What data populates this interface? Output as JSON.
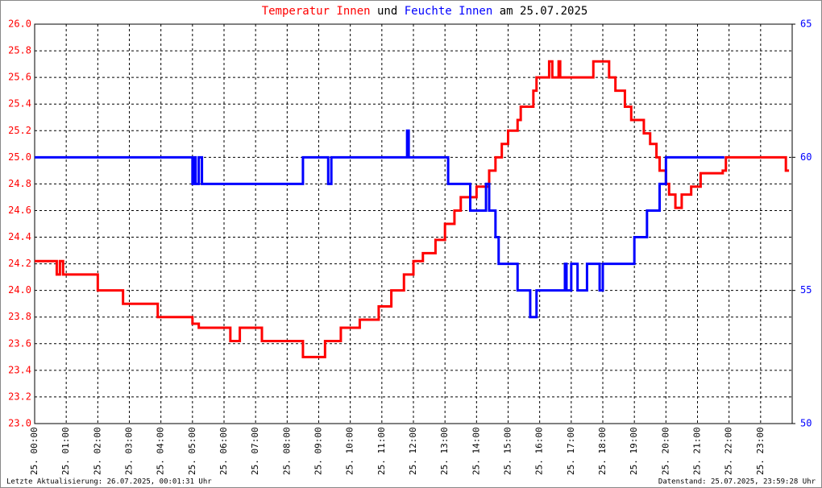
{
  "chart_data": {
    "type": "line",
    "title_connector": "und",
    "title_suffix": "am 25.07.2025",
    "footer_left": "Letzte Aktualisierung: 26.07.2025, 00:01:31 Uhr",
    "footer_right": "Datenstand: 25.07.2025, 23:59:28 Uhr",
    "step": true,
    "grid": true,
    "xlim": [
      0,
      24
    ],
    "xticks": [
      {
        "value": 0,
        "label": "25. 00:00"
      },
      {
        "value": 1,
        "label": "25. 01:00"
      },
      {
        "value": 2,
        "label": "25. 02:00"
      },
      {
        "value": 3,
        "label": "25. 03:00"
      },
      {
        "value": 4,
        "label": "25. 04:00"
      },
      {
        "value": 5,
        "label": "25. 05:00"
      },
      {
        "value": 6,
        "label": "25. 06:00"
      },
      {
        "value": 7,
        "label": "25. 07:00"
      },
      {
        "value": 8,
        "label": "25. 08:00"
      },
      {
        "value": 9,
        "label": "25. 09:00"
      },
      {
        "value": 10,
        "label": "25. 10:00"
      },
      {
        "value": 11,
        "label": "25. 11:00"
      },
      {
        "value": 12,
        "label": "25. 12:00"
      },
      {
        "value": 13,
        "label": "25. 13:00"
      },
      {
        "value": 14,
        "label": "25. 14:00"
      },
      {
        "value": 15,
        "label": "25. 15:00"
      },
      {
        "value": 16,
        "label": "25. 16:00"
      },
      {
        "value": 17,
        "label": "25. 17:00"
      },
      {
        "value": 18,
        "label": "25. 18:00"
      },
      {
        "value": 19,
        "label": "25. 19:00"
      },
      {
        "value": 20,
        "label": "25. 20:00"
      },
      {
        "value": 21,
        "label": "25. 21:00"
      },
      {
        "value": 22,
        "label": "25. 22:00"
      },
      {
        "value": 23,
        "label": "25. 23:00"
      }
    ],
    "ylim": [
      23,
      26
    ],
    "yticks": [
      {
        "value": 23,
        "label": "23.0"
      },
      23.2,
      23.4,
      23.6,
      23.8,
      {
        "value": 24,
        "label": "24.0"
      },
      24.2,
      24.4,
      24.6,
      24.8,
      {
        "value": 25,
        "label": "25.0"
      },
      25.2,
      25.4,
      25.6,
      25.8,
      {
        "value": 26,
        "label": "26.0"
      }
    ],
    "y2lim": [
      50,
      65
    ],
    "y2ticks": [
      50,
      55,
      60,
      65
    ],
    "series": [
      {
        "name": "Temperatur Innen",
        "color": "#ff0000",
        "x": [
          0,
          0.7,
          0.8,
          0.9,
          1.0,
          2.0,
          2.8,
          3.0,
          3.9,
          4.2,
          5.0,
          5.2,
          6.2,
          6.5,
          7.2,
          8.5,
          9.0,
          9.2,
          9.7,
          10.3,
          10.9,
          11.3,
          11.7,
          12.0,
          12.3,
          12.7,
          13.0,
          13.3,
          13.5,
          14.0,
          14.4,
          14.6,
          14.8,
          15.0,
          15.3,
          15.4,
          15.8,
          15.9,
          16.3,
          16.4,
          16.6,
          16.65,
          17.7,
          18.2,
          18.4,
          18.7,
          18.9,
          19.3,
          19.5,
          19.7,
          19.8,
          20.0,
          20.1,
          20.3,
          20.5,
          20.8,
          21.1,
          21.8,
          21.9,
          23.8,
          23.9
        ],
        "values": [
          24.22,
          24.12,
          24.22,
          24.12,
          24.12,
          24.0,
          23.9,
          23.9,
          23.8,
          23.8,
          23.75,
          23.72,
          23.62,
          23.72,
          23.62,
          23.5,
          23.5,
          23.62,
          23.72,
          23.78,
          23.88,
          24.0,
          24.12,
          24.22,
          24.28,
          24.38,
          24.5,
          24.6,
          24.7,
          24.78,
          24.9,
          25.0,
          25.1,
          25.2,
          25.28,
          25.38,
          25.5,
          25.6,
          25.72,
          25.6,
          25.72,
          25.6,
          25.72,
          25.6,
          25.5,
          25.38,
          25.28,
          25.18,
          25.1,
          25.0,
          24.9,
          24.8,
          24.72,
          24.62,
          24.72,
          24.78,
          24.88,
          24.9,
          25.0,
          24.9,
          24.9
        ]
      },
      {
        "name": "Feuchte Innen",
        "color": "#0000ff",
        "axis": "y2",
        "x": [
          0,
          5.0,
          5.05,
          5.1,
          5.2,
          5.3,
          8.5,
          9.3,
          9.4,
          11.8,
          11.85,
          13.1,
          13.8,
          14.3,
          14.4,
          14.6,
          14.7,
          15.3,
          15.7,
          15.9,
          16.8,
          16.85,
          17.0,
          17.2,
          17.5,
          17.7,
          17.9,
          18.0,
          19.0,
          19.4,
          19.8,
          20.0,
          21.85
        ],
        "values": [
          60,
          59,
          60,
          59,
          60,
          59,
          60,
          59,
          60,
          61,
          60,
          59,
          58,
          59,
          58,
          57,
          56,
          55,
          54,
          55,
          56,
          55,
          56,
          55,
          56,
          56,
          55,
          56,
          57,
          58,
          59,
          60,
          60
        ]
      }
    ]
  }
}
